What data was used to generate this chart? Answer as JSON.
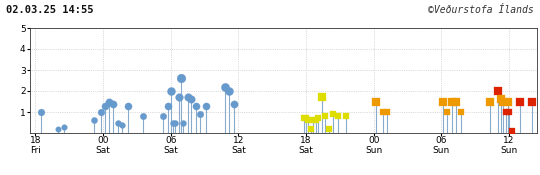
{
  "title_left": "02.03.25 14:55",
  "title_right": "©Veðurstofa Ílands",
  "ylim": [
    0,
    5
  ],
  "yticks": [
    1,
    2,
    3,
    4,
    5
  ],
  "background_color": "#ffffff",
  "grid_color": "#bbbbbb",
  "stem_color": "#88aacc",
  "xlim_hours": [
    -0.5,
    44.5
  ],
  "xtick_positions": [
    0,
    6,
    12,
    18,
    24,
    30,
    36,
    42
  ],
  "xtick_labels": [
    "18\nFri",
    "00\nSat",
    "06\nSat",
    "12\nSat",
    "18\nSat",
    "00\nSun",
    "06\nSun",
    "12\nSun"
  ],
  "events": [
    {
      "t": 0.5,
      "mag": 1.0,
      "color": "#6699cc"
    },
    {
      "t": 2.0,
      "mag": 0.2,
      "color": "#6699cc"
    },
    {
      "t": 2.5,
      "mag": 0.3,
      "color": "#6699cc"
    },
    {
      "t": 5.2,
      "mag": 0.6,
      "color": "#6699cc"
    },
    {
      "t": 5.8,
      "mag": 1.0,
      "color": "#6699cc"
    },
    {
      "t": 6.2,
      "mag": 1.3,
      "color": "#6699cc"
    },
    {
      "t": 6.5,
      "mag": 1.5,
      "color": "#6699cc"
    },
    {
      "t": 6.9,
      "mag": 1.4,
      "color": "#6699cc"
    },
    {
      "t": 7.3,
      "mag": 0.5,
      "color": "#6699cc"
    },
    {
      "t": 7.7,
      "mag": 0.4,
      "color": "#6699cc"
    },
    {
      "t": 8.2,
      "mag": 1.3,
      "color": "#6699cc"
    },
    {
      "t": 9.5,
      "mag": 0.8,
      "color": "#6699cc"
    },
    {
      "t": 11.3,
      "mag": 0.8,
      "color": "#6699cc"
    },
    {
      "t": 11.8,
      "mag": 1.3,
      "color": "#6699cc"
    },
    {
      "t": 12.0,
      "mag": 2.0,
      "color": "#6699cc"
    },
    {
      "t": 12.2,
      "mag": 0.5,
      "color": "#6699cc"
    },
    {
      "t": 12.4,
      "mag": 0.5,
      "color": "#6699cc"
    },
    {
      "t": 12.7,
      "mag": 1.7,
      "color": "#6699cc"
    },
    {
      "t": 12.9,
      "mag": 2.6,
      "color": "#6699cc"
    },
    {
      "t": 13.1,
      "mag": 0.5,
      "color": "#6699cc"
    },
    {
      "t": 13.5,
      "mag": 1.7,
      "color": "#6699cc"
    },
    {
      "t": 13.8,
      "mag": 1.6,
      "color": "#6699cc"
    },
    {
      "t": 14.2,
      "mag": 1.3,
      "color": "#6699cc"
    },
    {
      "t": 14.6,
      "mag": 0.9,
      "color": "#6699cc"
    },
    {
      "t": 15.1,
      "mag": 1.3,
      "color": "#6699cc"
    },
    {
      "t": 16.8,
      "mag": 2.2,
      "color": "#6699cc"
    },
    {
      "t": 17.2,
      "mag": 2.0,
      "color": "#6699cc"
    },
    {
      "t": 17.6,
      "mag": 1.4,
      "color": "#6699cc"
    },
    {
      "t": 23.8,
      "mag": 0.7,
      "color": "#dddd00"
    },
    {
      "t": 24.0,
      "mag": 0.7,
      "color": "#dddd00"
    },
    {
      "t": 24.2,
      "mag": 0.6,
      "color": "#dddd00"
    },
    {
      "t": 24.4,
      "mag": 0.2,
      "color": "#dddd00"
    },
    {
      "t": 24.6,
      "mag": 0.6,
      "color": "#dddd00"
    },
    {
      "t": 24.9,
      "mag": 0.6,
      "color": "#dddd00"
    },
    {
      "t": 25.1,
      "mag": 0.7,
      "color": "#dddd00"
    },
    {
      "t": 25.4,
      "mag": 1.7,
      "color": "#dddd00"
    },
    {
      "t": 25.7,
      "mag": 0.8,
      "color": "#dddd00"
    },
    {
      "t": 26.0,
      "mag": 0.2,
      "color": "#dddd00"
    },
    {
      "t": 26.4,
      "mag": 0.9,
      "color": "#dddd00"
    },
    {
      "t": 26.8,
      "mag": 0.8,
      "color": "#dddd00"
    },
    {
      "t": 27.5,
      "mag": 0.8,
      "color": "#dddd00"
    },
    {
      "t": 30.2,
      "mag": 1.5,
      "color": "#ee9900"
    },
    {
      "t": 30.8,
      "mag": 1.0,
      "color": "#ee9900"
    },
    {
      "t": 31.2,
      "mag": 1.0,
      "color": "#ee9900"
    },
    {
      "t": 36.1,
      "mag": 1.5,
      "color": "#ee9900"
    },
    {
      "t": 36.5,
      "mag": 1.0,
      "color": "#ee9900"
    },
    {
      "t": 36.9,
      "mag": 1.5,
      "color": "#ee9900"
    },
    {
      "t": 37.3,
      "mag": 1.5,
      "color": "#ee9900"
    },
    {
      "t": 37.7,
      "mag": 1.0,
      "color": "#ee9900"
    },
    {
      "t": 40.3,
      "mag": 1.5,
      "color": "#ee9900"
    },
    {
      "t": 41.0,
      "mag": 2.0,
      "color": "#dd2200"
    },
    {
      "t": 41.3,
      "mag": 1.6,
      "color": "#ee9900"
    },
    {
      "t": 41.5,
      "mag": 1.5,
      "color": "#ee9900"
    },
    {
      "t": 41.7,
      "mag": 1.0,
      "color": "#dd2200"
    },
    {
      "t": 41.9,
      "mag": 1.5,
      "color": "#ee9900"
    },
    {
      "t": 42.0,
      "mag": 1.0,
      "color": "#dd2200"
    },
    {
      "t": 42.3,
      "mag": 0.1,
      "color": "#dd2200"
    },
    {
      "t": 43.0,
      "mag": 1.5,
      "color": "#dd2200"
    },
    {
      "t": 44.0,
      "mag": 1.5,
      "color": "#dd2200"
    }
  ]
}
